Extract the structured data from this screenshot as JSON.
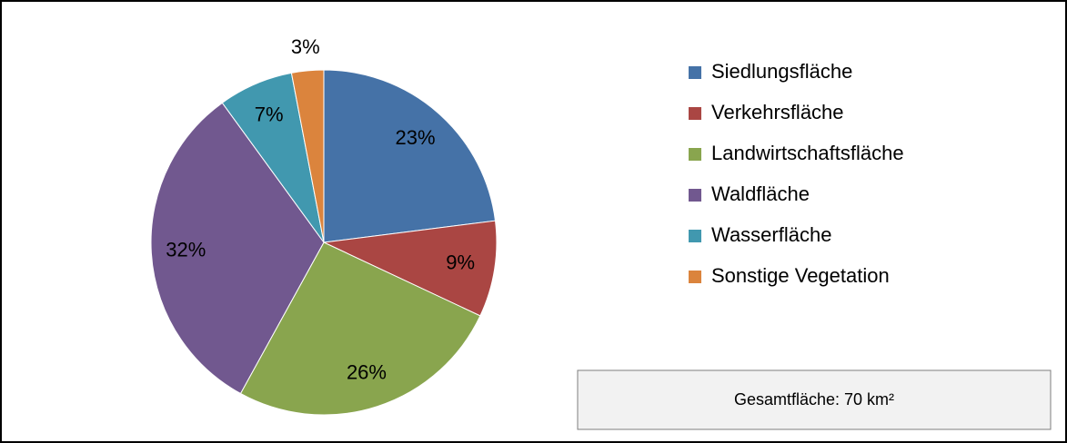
{
  "chart_data": {
    "type": "pie",
    "categories": [
      "Siedlungsfläche",
      "Verkehrsfläche",
      "Landwirtschaftsfläche",
      "Waldfläche",
      "Wasserfläche",
      "Sonstige Vegetation"
    ],
    "values": [
      23,
      9,
      26,
      32,
      7,
      3
    ],
    "value_labels": [
      "23%",
      "9%",
      "26%",
      "32%",
      "7%",
      "3%"
    ],
    "colors": [
      "#4572a7",
      "#aa4643",
      "#89a54e",
      "#71588f",
      "#4198af",
      "#db843d"
    ],
    "legend": "right",
    "annotation": "Gesamtfläche: 70 km²"
  }
}
